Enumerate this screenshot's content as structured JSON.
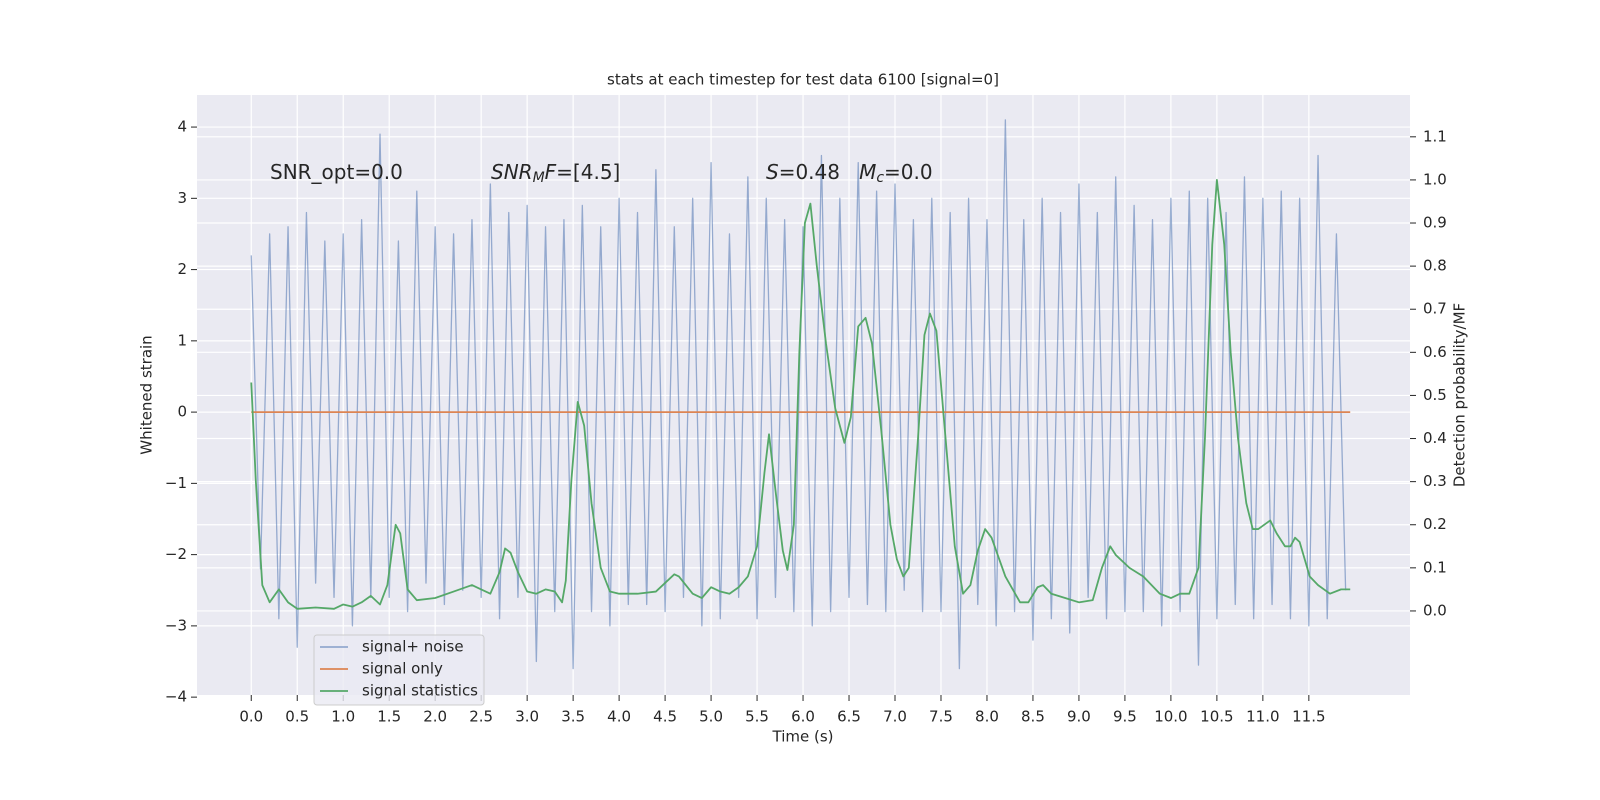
{
  "chart_data": {
    "type": "line",
    "title": "stats at each timestep for test data 6100 [signal=0]",
    "xlabel": "Time (s)",
    "ylabel": "Whitened strain",
    "y2label": "Detection probability/MF",
    "xlim": [
      -0.59,
      12.6
    ],
    "ylim": [
      -3.97,
      4.45
    ],
    "y2lim": [
      -0.195,
      1.197
    ],
    "xticks": [
      {
        "value": 0,
        "label": "0.0"
      },
      {
        "value": 0.5,
        "label": "0.5"
      },
      {
        "value": 1,
        "label": "1.0"
      },
      {
        "value": 1.5,
        "label": "1.5"
      },
      {
        "value": 2,
        "label": "2.0"
      },
      {
        "value": 2.5,
        "label": "2.5"
      },
      {
        "value": 3,
        "label": "3.0"
      },
      {
        "value": 3.5,
        "label": "3.5"
      },
      {
        "value": 4,
        "label": "4.0"
      },
      {
        "value": 4.5,
        "label": "4.5"
      },
      {
        "value": 5,
        "label": "5.0"
      },
      {
        "value": 5.5,
        "label": "5.5"
      },
      {
        "value": 6,
        "label": "6.0"
      },
      {
        "value": 6.5,
        "label": "6.5"
      },
      {
        "value": 7,
        "label": "7.0"
      },
      {
        "value": 7.5,
        "label": "7.5"
      },
      {
        "value": 8,
        "label": "8.0"
      },
      {
        "value": 8.5,
        "label": "8.5"
      },
      {
        "value": 9,
        "label": "9.0"
      },
      {
        "value": 9.5,
        "label": "9.5"
      },
      {
        "value": 10,
        "label": "10.0"
      },
      {
        "value": 10.5,
        "label": "10.5"
      },
      {
        "value": 11,
        "label": "11.0"
      },
      {
        "value": 11.5,
        "label": "11.5"
      }
    ],
    "yticks": [
      {
        "value": -4,
        "label": "−4"
      },
      {
        "value": -3,
        "label": "−3"
      },
      {
        "value": -2,
        "label": "−2"
      },
      {
        "value": -1,
        "label": "−1"
      },
      0,
      1,
      2,
      3,
      4
    ],
    "y2ticks": [
      {
        "value": 0,
        "label": "0.0"
      },
      0.1,
      0.2,
      0.3,
      0.4,
      0.5,
      0.6,
      0.7,
      0.8,
      0.9,
      {
        "value": 1,
        "label": "1.0"
      },
      1.1
    ],
    "grid": true,
    "legend": "lower left",
    "annotations": [
      [
        {
          "text": "SNR_opt=0.0",
          "style": "normal"
        }
      ],
      [
        {
          "text": "SNR",
          "style": "italic"
        },
        {
          "text": "M",
          "style": "sub-italic"
        },
        {
          "text": "F",
          "style": "italic"
        },
        {
          "text": "=[4.5]",
          "style": "normal"
        }
      ],
      [
        {
          "text": "S",
          "style": "italic"
        },
        {
          "text": "=0.48   ",
          "style": "normal"
        },
        {
          "text": "M",
          "style": "italic"
        },
        {
          "text": "c",
          "style": "sub-italic"
        },
        {
          "text": "=0.0",
          "style": "normal"
        }
      ]
    ],
    "series": [
      {
        "name": "signal+ noise",
        "color": "#4c72b0",
        "axis": "y",
        "x": [
          0,
          0.1,
          0.2,
          0.3,
          0.4,
          0.5,
          0.6,
          0.7,
          0.8,
          0.9,
          1,
          1.1,
          1.2,
          1.3,
          1.4,
          1.5,
          1.6,
          1.7,
          1.8,
          1.9,
          2,
          2.1,
          2.2,
          2.3,
          2.4,
          2.5,
          2.6,
          2.7,
          2.8,
          2.9,
          3,
          3.1,
          3.2,
          3.3,
          3.4,
          3.5,
          3.6,
          3.7,
          3.8,
          3.9,
          4,
          4.1,
          4.2,
          4.3,
          4.4,
          4.5,
          4.6,
          4.7,
          4.8,
          4.9,
          5,
          5.1,
          5.2,
          5.3,
          5.4,
          5.5,
          5.6,
          5.7,
          5.8,
          5.9,
          6,
          6.1,
          6.2,
          6.3,
          6.4,
          6.5,
          6.6,
          6.7,
          6.8,
          6.9,
          7,
          7.1,
          7.2,
          7.3,
          7.4,
          7.5,
          7.6,
          7.7,
          7.8,
          7.9,
          8,
          8.1,
          8.2,
          8.3,
          8.4,
          8.5,
          8.6,
          8.7,
          8.8,
          8.9,
          9,
          9.1,
          9.2,
          9.3,
          9.4,
          9.5,
          9.6,
          9.7,
          9.8,
          9.9,
          10,
          10.1,
          10.2,
          10.3,
          10.4,
          10.5,
          10.6,
          10.7,
          10.8,
          10.9,
          11,
          11.1,
          11.2,
          11.3,
          11.4,
          11.5,
          11.6,
          11.7,
          11.8,
          11.9
        ],
        "values": [
          2.2,
          -2.2,
          2.5,
          -2.9,
          2.6,
          -3.3,
          2.8,
          -2.4,
          2.4,
          -2.6,
          2.5,
          -3.0,
          2.7,
          -2.6,
          3.9,
          -2.6,
          2.4,
          -2.8,
          3.1,
          -2.4,
          2.6,
          -2.7,
          2.5,
          -2.5,
          2.7,
          -2.6,
          3.2,
          -2.9,
          2.8,
          -2.6,
          2.9,
          -3.5,
          2.6,
          -2.8,
          2.7,
          -3.6,
          2.9,
          -2.8,
          2.6,
          -3.0,
          3.0,
          -2.7,
          2.8,
          -2.7,
          3.4,
          -2.8,
          2.6,
          -2.6,
          3.0,
          -3.0,
          3.5,
          -2.9,
          2.5,
          -2.6,
          3.3,
          -2.9,
          3.0,
          -2.6,
          2.7,
          -2.8,
          2.6,
          -3.0,
          3.6,
          -2.8,
          3.0,
          -2.6,
          3.5,
          -2.7,
          3.1,
          -2.8,
          3.2,
          -2.5,
          2.7,
          -2.8,
          3.0,
          -2.8,
          2.8,
          -3.6,
          3.0,
          -2.7,
          2.7,
          -3.0,
          4.1,
          -2.8,
          2.7,
          -3.2,
          3.0,
          -2.9,
          2.8,
          -3.1,
          3.2,
          -2.6,
          2.8,
          -2.9,
          3.3,
          -2.8,
          2.9,
          -2.8,
          2.7,
          -3.0,
          3.0,
          -2.8,
          3.1,
          -3.55,
          3.0,
          -2.9,
          2.8,
          -2.7,
          3.3,
          -2.9,
          3.0,
          -2.7,
          3.1,
          -2.9,
          3.0,
          -3.0,
          3.6,
          -2.9,
          2.5,
          -2.5
        ]
      },
      {
        "name": "signal only",
        "color": "#dd8452",
        "axis": "y",
        "x": [
          0,
          11.95
        ],
        "values": [
          0,
          0
        ]
      },
      {
        "name": "signal statistics",
        "color": "#55a868",
        "axis": "y2",
        "x": [
          0,
          0.05,
          0.12,
          0.2,
          0.3,
          0.4,
          0.5,
          0.7,
          0.9,
          1.0,
          1.1,
          1.2,
          1.3,
          1.4,
          1.48,
          1.57,
          1.62,
          1.7,
          1.8,
          2.0,
          2.2,
          2.4,
          2.5,
          2.6,
          2.7,
          2.76,
          2.82,
          2.9,
          3.0,
          3.1,
          3.2,
          3.3,
          3.38,
          3.42,
          3.48,
          3.55,
          3.62,
          3.7,
          3.8,
          3.9,
          4.0,
          4.2,
          4.4,
          4.5,
          4.6,
          4.65,
          4.8,
          4.9,
          5.0,
          5.1,
          5.2,
          5.3,
          5.4,
          5.5,
          5.58,
          5.63,
          5.7,
          5.78,
          5.83,
          5.9,
          5.96,
          6.02,
          6.08,
          6.15,
          6.25,
          6.35,
          6.45,
          6.52,
          6.6,
          6.68,
          6.75,
          6.85,
          6.95,
          7.02,
          7.09,
          7.15,
          7.25,
          7.32,
          7.38,
          7.45,
          7.55,
          7.65,
          7.74,
          7.82,
          7.9,
          7.98,
          8.05,
          8.2,
          8.36,
          8.45,
          8.55,
          8.61,
          8.7,
          8.85,
          9.0,
          9.15,
          9.25,
          9.34,
          9.4,
          9.55,
          9.7,
          9.88,
          10.0,
          10.1,
          10.2,
          10.3,
          10.37,
          10.45,
          10.5,
          10.58,
          10.65,
          10.73,
          10.82,
          10.89,
          10.95,
          11.08,
          11.15,
          11.24,
          11.3,
          11.35,
          11.4,
          11.51,
          11.6,
          11.73,
          11.85,
          11.95
        ],
        "values": [
          0.53,
          0.3,
          0.06,
          0.02,
          0.05,
          0.02,
          0.005,
          0.008,
          0.005,
          0.015,
          0.01,
          0.02,
          0.035,
          0.015,
          0.06,
          0.2,
          0.18,
          0.05,
          0.025,
          0.03,
          0.045,
          0.06,
          0.05,
          0.04,
          0.09,
          0.145,
          0.135,
          0.09,
          0.045,
          0.04,
          0.05,
          0.045,
          0.02,
          0.07,
          0.3,
          0.485,
          0.43,
          0.25,
          0.1,
          0.045,
          0.04,
          0.04,
          0.045,
          0.065,
          0.085,
          0.08,
          0.04,
          0.03,
          0.055,
          0.045,
          0.04,
          0.055,
          0.08,
          0.15,
          0.32,
          0.41,
          0.28,
          0.14,
          0.095,
          0.2,
          0.6,
          0.9,
          0.945,
          0.8,
          0.62,
          0.47,
          0.39,
          0.45,
          0.66,
          0.68,
          0.62,
          0.42,
          0.2,
          0.12,
          0.08,
          0.1,
          0.4,
          0.64,
          0.69,
          0.65,
          0.4,
          0.15,
          0.04,
          0.06,
          0.14,
          0.19,
          0.17,
          0.08,
          0.02,
          0.02,
          0.055,
          0.06,
          0.04,
          0.03,
          0.02,
          0.025,
          0.1,
          0.15,
          0.13,
          0.1,
          0.08,
          0.04,
          0.03,
          0.04,
          0.04,
          0.1,
          0.4,
          0.85,
          1.0,
          0.85,
          0.6,
          0.4,
          0.25,
          0.19,
          0.19,
          0.21,
          0.18,
          0.15,
          0.15,
          0.17,
          0.16,
          0.08,
          0.06,
          0.04,
          0.05,
          0.05
        ]
      }
    ]
  }
}
